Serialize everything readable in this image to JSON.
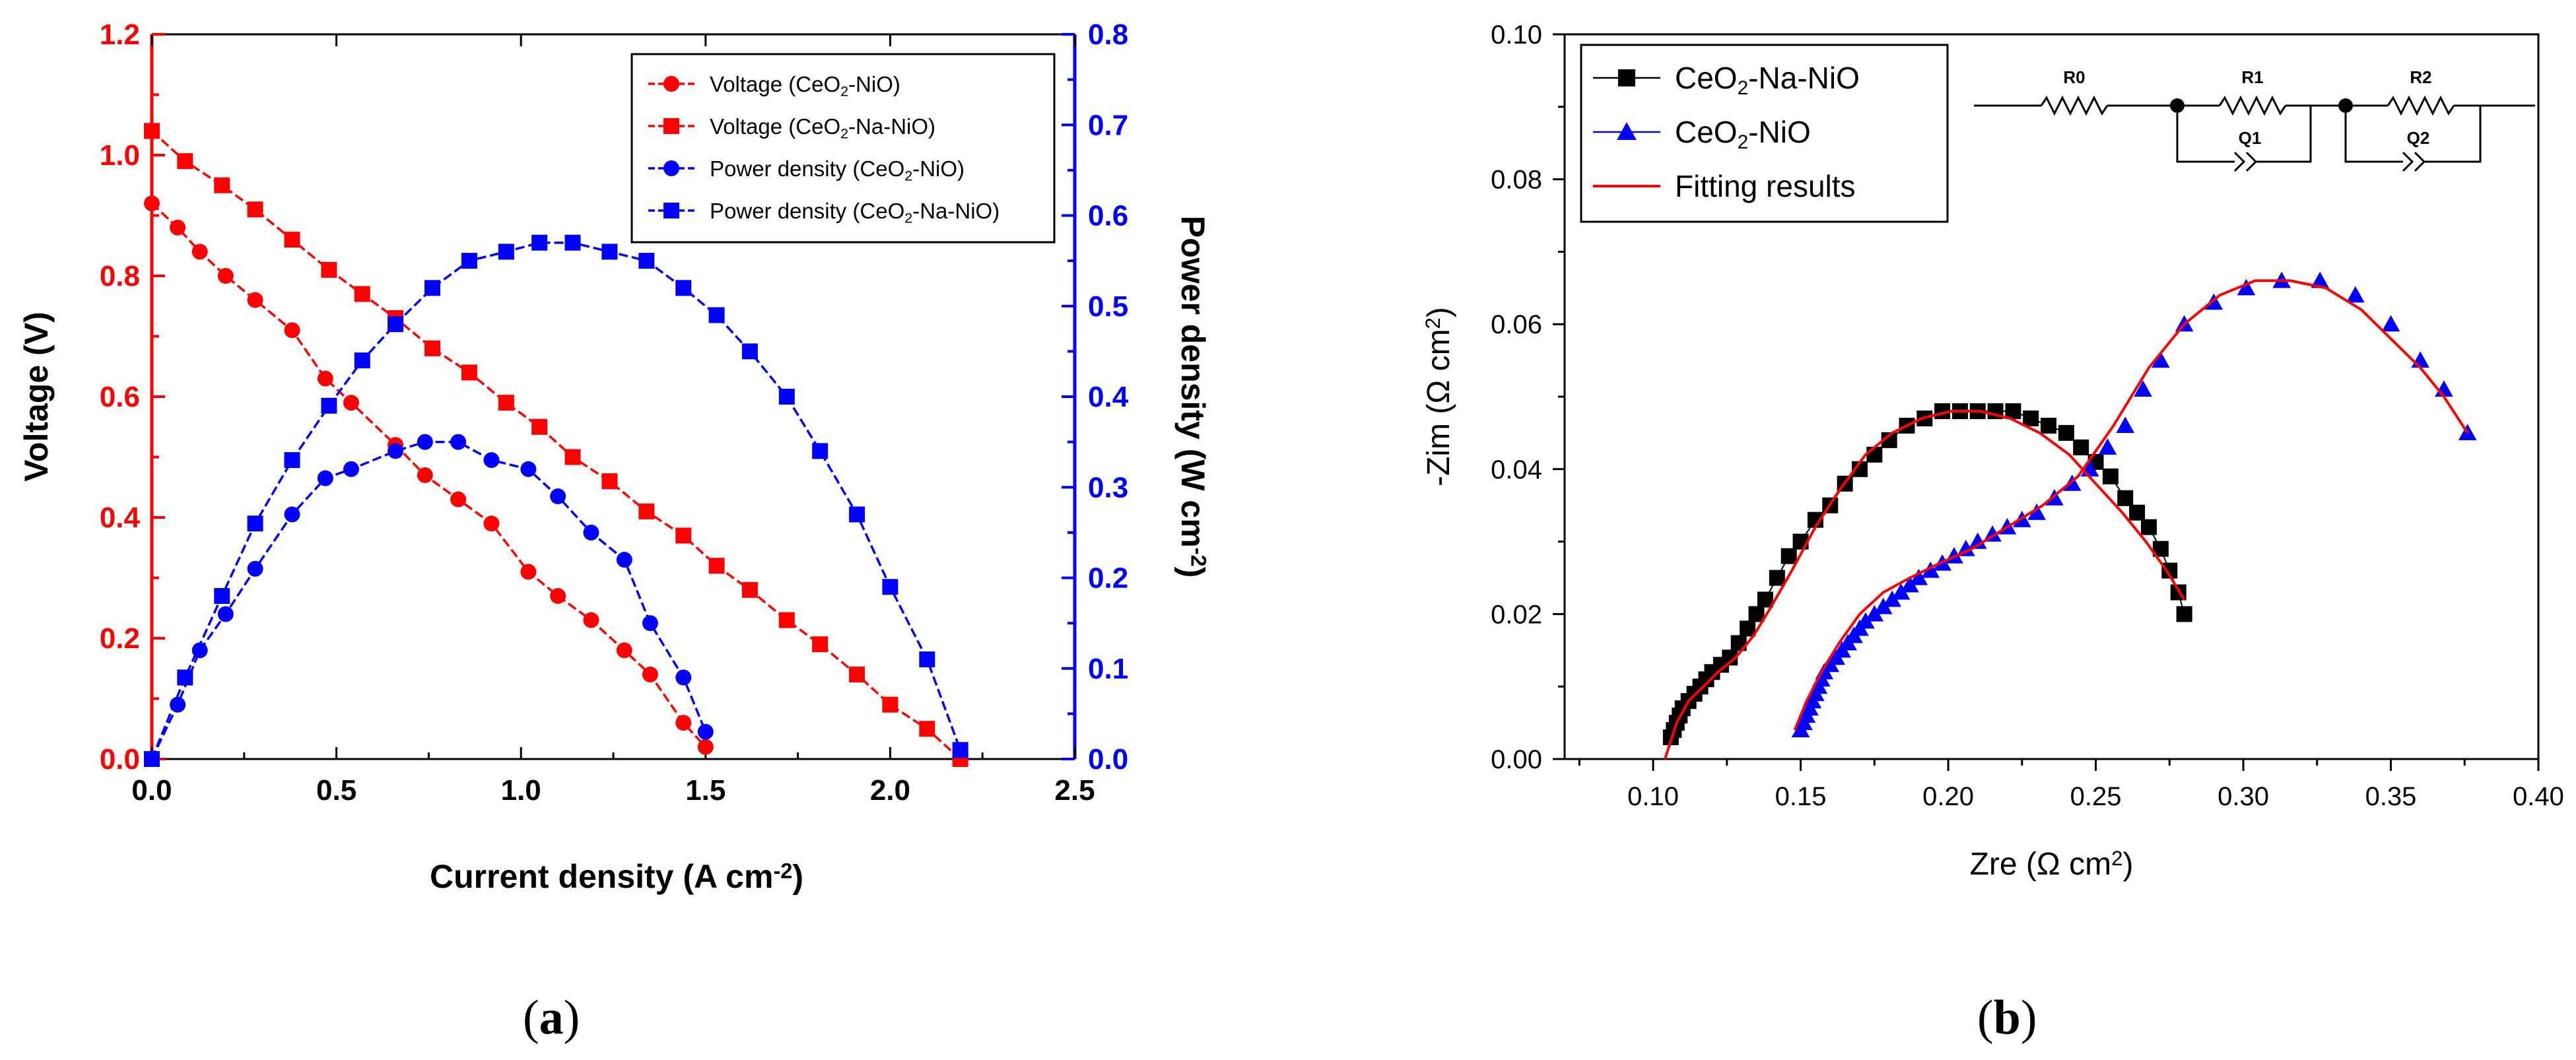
{
  "figure": {
    "panel_a": {
      "open": "(",
      "letter": "a",
      "close": ")"
    },
    "panel_b": {
      "open": "(",
      "letter": "b",
      "close": ")"
    }
  },
  "chart_data": [
    {
      "id": "a",
      "type": "line",
      "title": "",
      "xlabel": "Current density (A cm",
      "xlabel_sup": "-2",
      "xlabel_end": ")",
      "ylabel": "Voltage (V)",
      "y2label": "Power density (W cm",
      "y2label_sup": "-2",
      "y2label_end": ")",
      "xlim": [
        0,
        2.5
      ],
      "ylim": [
        0,
        1.2
      ],
      "y2lim": [
        0,
        0.8
      ],
      "xticks": [
        "0.0",
        "0.5",
        "1.0",
        "1.5",
        "2.0",
        "2.5"
      ],
      "yticks": [
        "0.0",
        "0.2",
        "0.4",
        "0.6",
        "0.8",
        "1.0",
        "1.2"
      ],
      "y2ticks": [
        "0.0",
        "0.1",
        "0.2",
        "0.3",
        "0.4",
        "0.5",
        "0.6",
        "0.7",
        "0.8"
      ],
      "colors": {
        "voltage": "#ff0000",
        "power": "#0000ff"
      },
      "legend_position": "top-right",
      "legend": [
        {
          "pre": "Voltage (CeO",
          "sub": "2",
          "post": "-NiO)",
          "marker": "circle",
          "color": "#ff0000"
        },
        {
          "pre": "Voltage (CeO",
          "sub": "2",
          "post": "-Na-NiO)",
          "marker": "square",
          "color": "#ff0000"
        },
        {
          "pre": "Power density  (CeO",
          "sub": "2",
          "post": "-NiO)",
          "marker": "circle",
          "color": "#0000ff"
        },
        {
          "pre": "Power density  (CeO",
          "sub": "2",
          "post": "-Na-NiO)",
          "marker": "square",
          "color": "#0000ff"
        }
      ],
      "series": [
        {
          "name": "Voltage (CeO2-NiO)",
          "axis": "left",
          "marker": "circle",
          "color": "#ff0000",
          "x": [
            0.0,
            0.07,
            0.13,
            0.2,
            0.28,
            0.38,
            0.47,
            0.54,
            0.66,
            0.74,
            0.83,
            0.92,
            1.02,
            1.1,
            1.19,
            1.28,
            1.35,
            1.44,
            1.5
          ],
          "y": [
            0.92,
            0.88,
            0.84,
            0.8,
            0.76,
            0.71,
            0.63,
            0.59,
            0.52,
            0.47,
            0.43,
            0.39,
            0.31,
            0.27,
            0.23,
            0.18,
            0.14,
            0.06,
            0.02
          ]
        },
        {
          "name": "Voltage (CeO2-Na-NiO)",
          "axis": "left",
          "marker": "square",
          "color": "#ff0000",
          "x": [
            0.0,
            0.09,
            0.19,
            0.28,
            0.38,
            0.48,
            0.57,
            0.66,
            0.76,
            0.86,
            0.96,
            1.05,
            1.14,
            1.24,
            1.34,
            1.44,
            1.53,
            1.62,
            1.72,
            1.81,
            1.91,
            2.0,
            2.1,
            2.19
          ],
          "y": [
            1.04,
            0.99,
            0.95,
            0.91,
            0.86,
            0.81,
            0.77,
            0.73,
            0.68,
            0.64,
            0.59,
            0.55,
            0.5,
            0.46,
            0.41,
            0.37,
            0.32,
            0.28,
            0.23,
            0.19,
            0.14,
            0.09,
            0.05,
            0.0
          ]
        },
        {
          "name": "Power density (CeO2-NiO)",
          "axis": "right",
          "marker": "circle",
          "color": "#0000ff",
          "x": [
            0.0,
            0.07,
            0.13,
            0.2,
            0.28,
            0.38,
            0.47,
            0.54,
            0.66,
            0.74,
            0.83,
            0.92,
            1.02,
            1.1,
            1.19,
            1.28,
            1.35,
            1.44,
            1.5
          ],
          "y": [
            0.0,
            0.06,
            0.12,
            0.16,
            0.21,
            0.27,
            0.31,
            0.32,
            0.34,
            0.35,
            0.35,
            0.33,
            0.32,
            0.29,
            0.25,
            0.22,
            0.15,
            0.09,
            0.03
          ]
        },
        {
          "name": "Power density (CeO2-Na-NiO)",
          "axis": "right",
          "marker": "square",
          "color": "#0000ff",
          "x": [
            0.0,
            0.09,
            0.19,
            0.28,
            0.38,
            0.48,
            0.57,
            0.66,
            0.76,
            0.86,
            0.96,
            1.05,
            1.14,
            1.24,
            1.34,
            1.44,
            1.53,
            1.62,
            1.72,
            1.81,
            1.91,
            2.0,
            2.1,
            2.19
          ],
          "y": [
            0.0,
            0.09,
            0.18,
            0.26,
            0.33,
            0.39,
            0.44,
            0.48,
            0.52,
            0.55,
            0.56,
            0.57,
            0.57,
            0.56,
            0.55,
            0.52,
            0.49,
            0.45,
            0.4,
            0.34,
            0.27,
            0.19,
            0.11,
            0.01
          ]
        }
      ]
    },
    {
      "id": "b",
      "type": "scatter",
      "title": "",
      "xlabel": "Zre (Ω cm",
      "xlabel_sup": "2",
      "xlabel_end": ")",
      "ylabel": "-Zim (Ω cm",
      "ylabel_sup": "2",
      "ylabel_end": ")",
      "xlim": [
        0.07,
        0.4
      ],
      "ylim": [
        0.0,
        0.1
      ],
      "xticks": [
        "0.10",
        "0.15",
        "0.20",
        "0.25",
        "0.30",
        "0.35",
        "0.40"
      ],
      "yticks": [
        "0.00",
        "0.02",
        "0.04",
        "0.06",
        "0.08",
        "0.10"
      ],
      "legend_position": "top-left",
      "legend": [
        {
          "pre": "CeO",
          "sub": "2",
          "post": "-Na-NiO",
          "marker": "square",
          "color": "#000000"
        },
        {
          "pre": "CeO",
          "sub": "2",
          "post": "-NiO",
          "marker": "triangle",
          "color": "#0000ff"
        },
        {
          "pre": "Fitting results",
          "sub": "",
          "post": "",
          "marker": "line",
          "color": "#ff0000"
        }
      ],
      "circuit_labels": {
        "r0": "R0",
        "r1": "R1",
        "q1": "Q1",
        "r2": "R2",
        "q2": "Q2"
      },
      "series": [
        {
          "name": "CeO2-Na-NiO",
          "marker": "square",
          "color": "#000000",
          "x": [
            0.106,
            0.107,
            0.108,
            0.109,
            0.11,
            0.112,
            0.114,
            0.116,
            0.118,
            0.12,
            0.123,
            0.126,
            0.129,
            0.132,
            0.135,
            0.138,
            0.142,
            0.146,
            0.15,
            0.155,
            0.16,
            0.165,
            0.17,
            0.175,
            0.18,
            0.186,
            0.192,
            0.198,
            0.204,
            0.21,
            0.216,
            0.222,
            0.228,
            0.234,
            0.24,
            0.245,
            0.25,
            0.255,
            0.26,
            0.264,
            0.268,
            0.272,
            0.275,
            0.278,
            0.28
          ],
          "y": [
            0.003,
            0.004,
            0.005,
            0.006,
            0.007,
            0.008,
            0.009,
            0.01,
            0.011,
            0.012,
            0.013,
            0.014,
            0.016,
            0.018,
            0.02,
            0.022,
            0.025,
            0.028,
            0.03,
            0.033,
            0.035,
            0.038,
            0.04,
            0.042,
            0.044,
            0.046,
            0.047,
            0.048,
            0.048,
            0.048,
            0.048,
            0.048,
            0.047,
            0.046,
            0.045,
            0.043,
            0.041,
            0.039,
            0.036,
            0.034,
            0.032,
            0.029,
            0.026,
            0.023,
            0.02
          ]
        },
        {
          "name": "CeO2-NiO",
          "marker": "triangle",
          "color": "#0000ff",
          "x": [
            0.15,
            0.151,
            0.152,
            0.153,
            0.154,
            0.155,
            0.156,
            0.157,
            0.158,
            0.16,
            0.162,
            0.164,
            0.166,
            0.168,
            0.17,
            0.172,
            0.175,
            0.178,
            0.181,
            0.184,
            0.187,
            0.19,
            0.194,
            0.198,
            0.202,
            0.206,
            0.21,
            0.215,
            0.22,
            0.225,
            0.23,
            0.236,
            0.242,
            0.248,
            0.254,
            0.26,
            0.266,
            0.272,
            0.28,
            0.29,
            0.301,
            0.313,
            0.326,
            0.338,
            0.35,
            0.36,
            0.368,
            0.376
          ],
          "y": [
            0.004,
            0.005,
            0.006,
            0.007,
            0.008,
            0.009,
            0.01,
            0.011,
            0.012,
            0.013,
            0.014,
            0.015,
            0.016,
            0.017,
            0.018,
            0.019,
            0.02,
            0.021,
            0.022,
            0.023,
            0.024,
            0.025,
            0.026,
            0.027,
            0.028,
            0.029,
            0.03,
            0.031,
            0.032,
            0.033,
            0.034,
            0.036,
            0.038,
            0.04,
            0.043,
            0.046,
            0.051,
            0.055,
            0.06,
            0.063,
            0.065,
            0.066,
            0.066,
            0.064,
            0.06,
            0.055,
            0.051,
            0.045
          ]
        },
        {
          "name": "Fitting results (CeO2-Na-NiO)",
          "marker": "line",
          "color": "#ff0000",
          "x": [
            0.104,
            0.108,
            0.112,
            0.117,
            0.122,
            0.128,
            0.134,
            0.14,
            0.147,
            0.155,
            0.163,
            0.172,
            0.181,
            0.191,
            0.201,
            0.211,
            0.221,
            0.231,
            0.241,
            0.25,
            0.259,
            0.267,
            0.274,
            0.28
          ],
          "y": [
            0.0,
            0.005,
            0.008,
            0.01,
            0.012,
            0.014,
            0.017,
            0.021,
            0.026,
            0.032,
            0.037,
            0.042,
            0.045,
            0.047,
            0.048,
            0.048,
            0.047,
            0.045,
            0.042,
            0.038,
            0.034,
            0.03,
            0.026,
            0.022
          ]
        },
        {
          "name": "Fitting results (CeO2-NiO)",
          "marker": "line",
          "color": "#ff0000",
          "x": [
            0.148,
            0.152,
            0.157,
            0.163,
            0.17,
            0.178,
            0.187,
            0.197,
            0.208,
            0.22,
            0.232,
            0.244,
            0.256,
            0.268,
            0.28,
            0.292,
            0.304,
            0.316,
            0.328,
            0.34,
            0.35,
            0.36,
            0.368,
            0.376
          ],
          "y": [
            0.004,
            0.008,
            0.012,
            0.016,
            0.02,
            0.023,
            0.025,
            0.027,
            0.029,
            0.032,
            0.035,
            0.039,
            0.046,
            0.054,
            0.06,
            0.064,
            0.066,
            0.066,
            0.065,
            0.062,
            0.058,
            0.054,
            0.05,
            0.045
          ]
        }
      ]
    }
  ]
}
